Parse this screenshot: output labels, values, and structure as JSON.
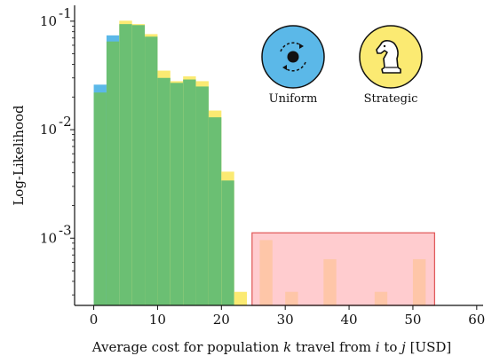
{
  "chart_data": {
    "type": "bar",
    "subtype": "overlapping-histogram",
    "title": "",
    "xlabel_parts": [
      "Average cost for population ",
      "k",
      " travel from ",
      "i",
      " to ",
      "j",
      " [USD]"
    ],
    "ylabel": "Log-Likelihood",
    "xlim": [
      -3,
      61
    ],
    "ylim": [
      0.00024,
      0.14
    ],
    "yscale": "log",
    "x_ticks": [
      0,
      10,
      20,
      30,
      40,
      50,
      60
    ],
    "x_tick_labels": [
      "0",
      "10",
      "20",
      "30",
      "40",
      "50",
      "60"
    ],
    "y_ticks": [
      {
        "value": 0.1,
        "base": "10",
        "exp": "-1"
      },
      {
        "value": 0.01,
        "base": "10",
        "exp": "-2"
      },
      {
        "value": 0.001,
        "base": "10",
        "exp": "-3"
      }
    ],
    "bin_width": 2,
    "series": [
      {
        "name": "Uniform",
        "color": "#5bb8e8",
        "bins": [
          {
            "x": 0,
            "y": 0.026
          },
          {
            "x": 2,
            "y": 0.074
          },
          {
            "x": 4,
            "y": 0.094
          },
          {
            "x": 6,
            "y": 0.092
          },
          {
            "x": 8,
            "y": 0.072
          },
          {
            "x": 10,
            "y": 0.03
          },
          {
            "x": 12,
            "y": 0.027
          },
          {
            "x": 14,
            "y": 0.029
          },
          {
            "x": 16,
            "y": 0.025
          },
          {
            "x": 18,
            "y": 0.013
          },
          {
            "x": 20,
            "y": 0.0034
          }
        ]
      },
      {
        "name": "Strategic",
        "color": "#fbea72",
        "bins": [
          {
            "x": 0,
            "y": 0.022
          },
          {
            "x": 2,
            "y": 0.065
          },
          {
            "x": 4,
            "y": 0.101
          },
          {
            "x": 6,
            "y": 0.094
          },
          {
            "x": 8,
            "y": 0.076
          },
          {
            "x": 10,
            "y": 0.035
          },
          {
            "x": 12,
            "y": 0.028
          },
          {
            "x": 14,
            "y": 0.031
          },
          {
            "x": 16,
            "y": 0.028
          },
          {
            "x": 18,
            "y": 0.015
          },
          {
            "x": 20,
            "y": 0.0041
          },
          {
            "x": 22,
            "y": 0.00032
          },
          {
            "x": 26,
            "y": 0.00096
          },
          {
            "x": 30,
            "y": 0.00032
          },
          {
            "x": 36,
            "y": 0.00064
          },
          {
            "x": 44,
            "y": 0.00032
          },
          {
            "x": 50,
            "y": 0.00064
          }
        ]
      }
    ],
    "overlap_color": "#6bbf73",
    "highlight_region": {
      "x_start": 24.8,
      "x_end": 53.4,
      "y_top": 0.00112,
      "fill": "#ffb8bd",
      "stroke": "#e05555"
    },
    "legend": {
      "placement": "top-right",
      "items": [
        {
          "label": "Uniform",
          "icon": "cycle-icon",
          "color": "#5bb8e8"
        },
        {
          "label": "Strategic",
          "icon": "chess-knight-icon",
          "color": "#fbea72"
        }
      ]
    },
    "grid": false
  }
}
